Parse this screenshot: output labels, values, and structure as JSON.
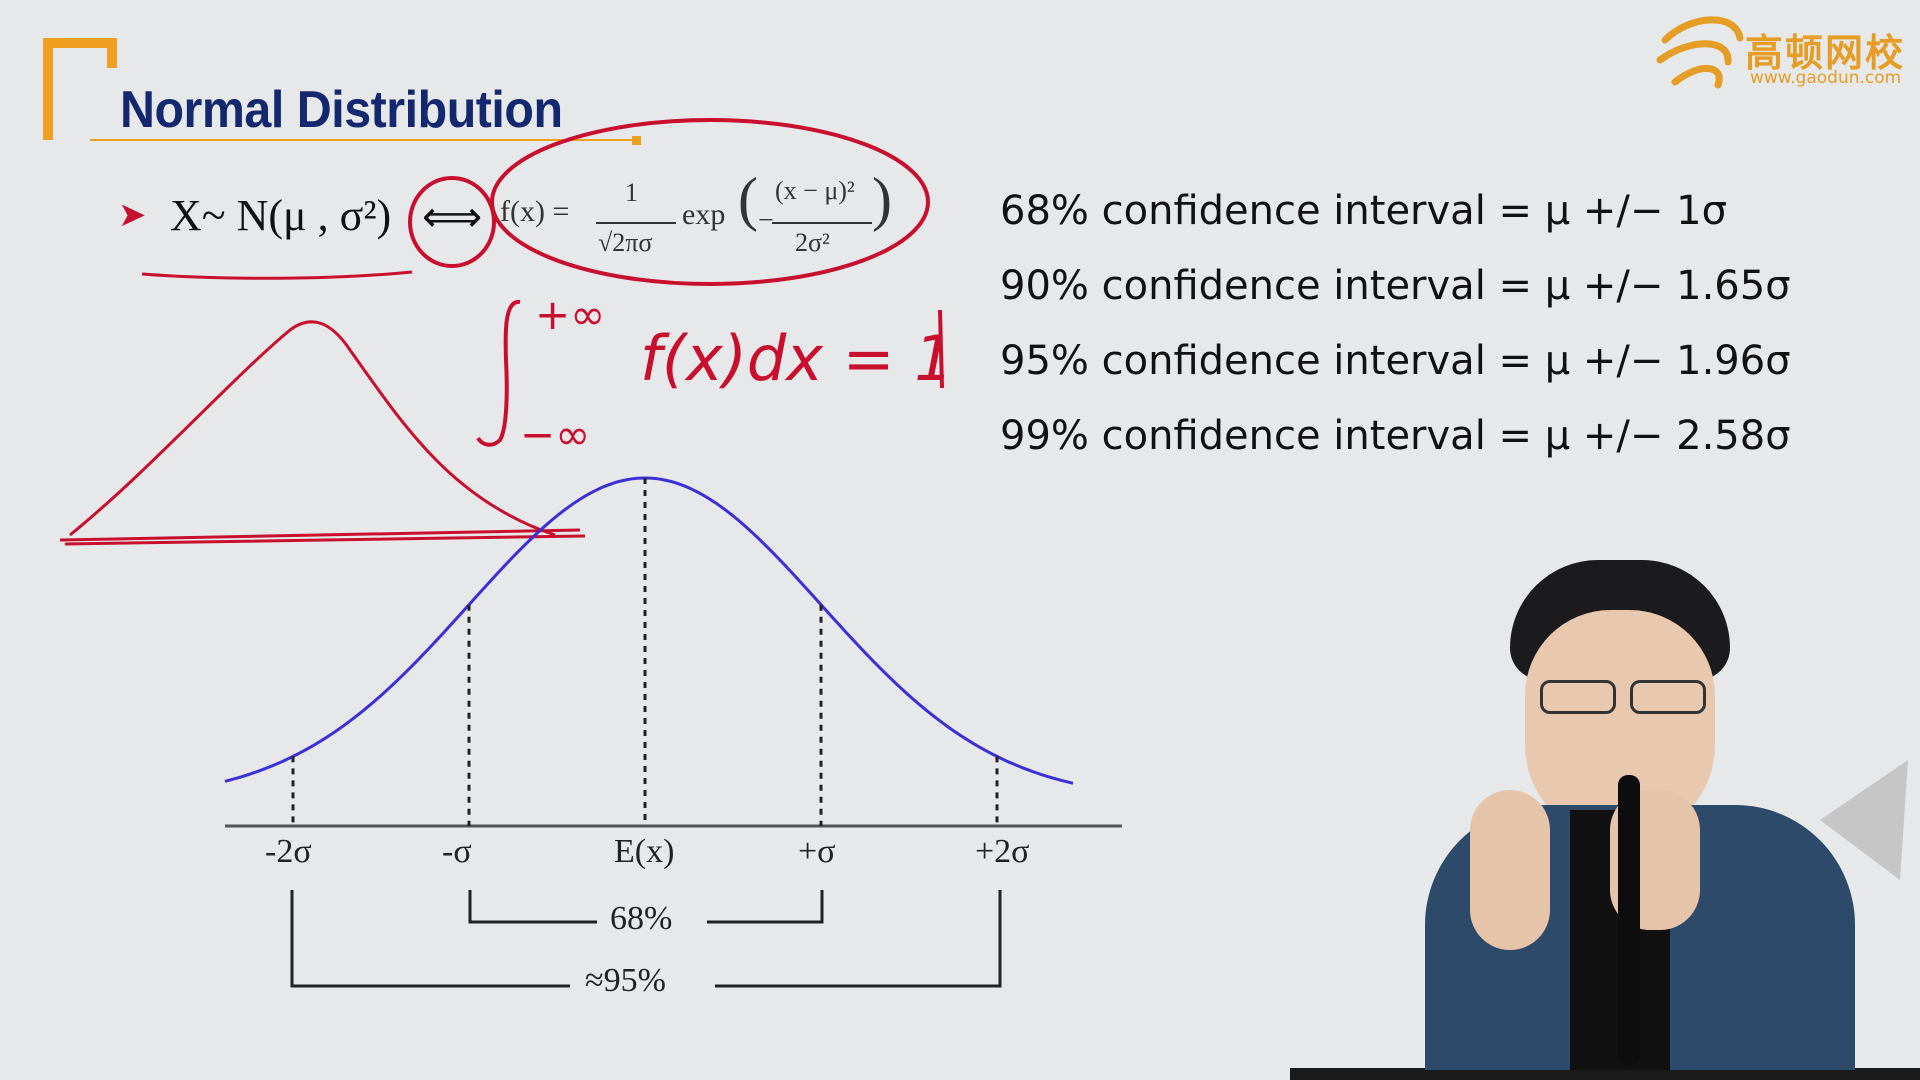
{
  "slide": {
    "title": "Normal Distribution",
    "bullet_marker": "➤",
    "notation": "X~ N(μ , σ²)",
    "equivalence": "⟺",
    "pdf_formula": {
      "lhs": "f(x) =",
      "numerator": "1",
      "denominator": "√2πσ",
      "exp": "exp",
      "exp_numerator": "(x − μ)²",
      "exp_denominator": "2σ²"
    },
    "confidence_intervals": [
      "68% confidence interval = μ +/− 1σ",
      "90% confidence interval = μ +/− 1.65σ",
      "95% confidence interval = μ +/− 1.96σ",
      "99% confidence interval = μ +/− 2.58σ"
    ],
    "curve_axis_labels": [
      "-2σ",
      "-σ",
      "E(x)",
      "+σ",
      "+2σ"
    ],
    "brackets": {
      "inner": "68%",
      "outer": "≈95%"
    }
  },
  "handwriting": {
    "integral_upper": "+∞",
    "integral_lower": "−∞",
    "integral_body": "f(x)dx = 1"
  },
  "logo": {
    "chinese": "高顿网校",
    "url": "www.gaodun.com"
  },
  "colors": {
    "title": "#13286e",
    "accent_orange": "#f0a020",
    "curve_blue": "#3b2fd6",
    "ink_red": "#c8102e"
  }
}
